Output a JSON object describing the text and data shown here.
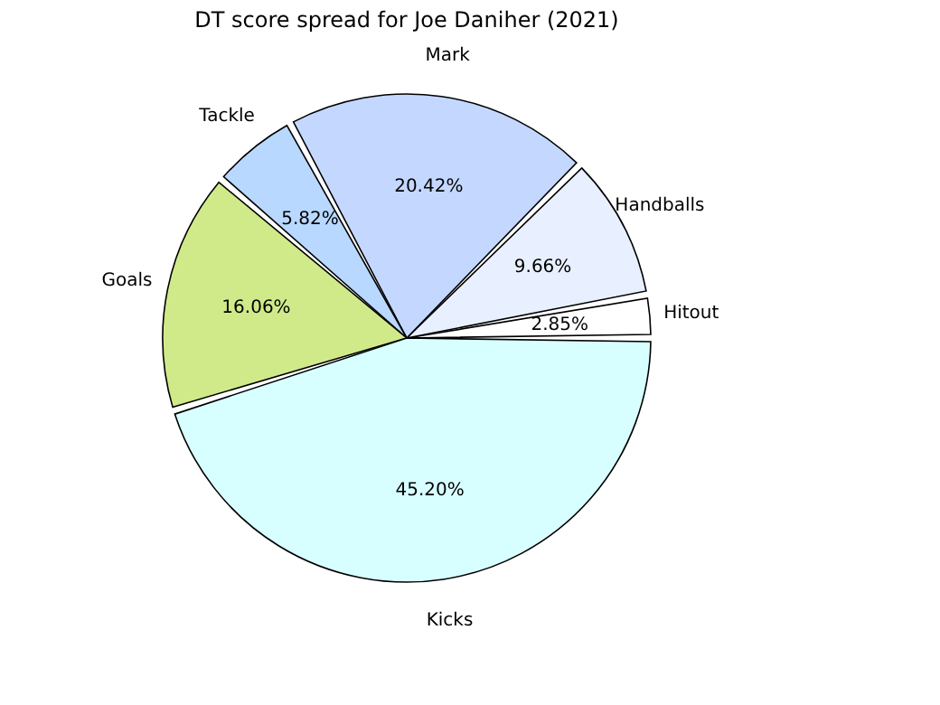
{
  "chart_data": {
    "type": "pie",
    "title": "DT score spread for Joe Daniher (2021)",
    "categories": [
      "Hitout",
      "Handballs",
      "Mark",
      "Tackle",
      "Goals",
      "Kicks"
    ],
    "values": [
      2.85,
      9.66,
      20.42,
      5.82,
      16.06,
      45.2
    ],
    "value_labels": [
      "2.85%",
      "9.66%",
      "20.42%",
      "5.82%",
      "16.06%",
      "45.20%"
    ],
    "colors": [
      "#ffffff",
      "#e8f0ff",
      "#c4d8ff",
      "#b8d8ff",
      "#d0ea8a",
      "#d8ffff"
    ],
    "legend": false
  }
}
